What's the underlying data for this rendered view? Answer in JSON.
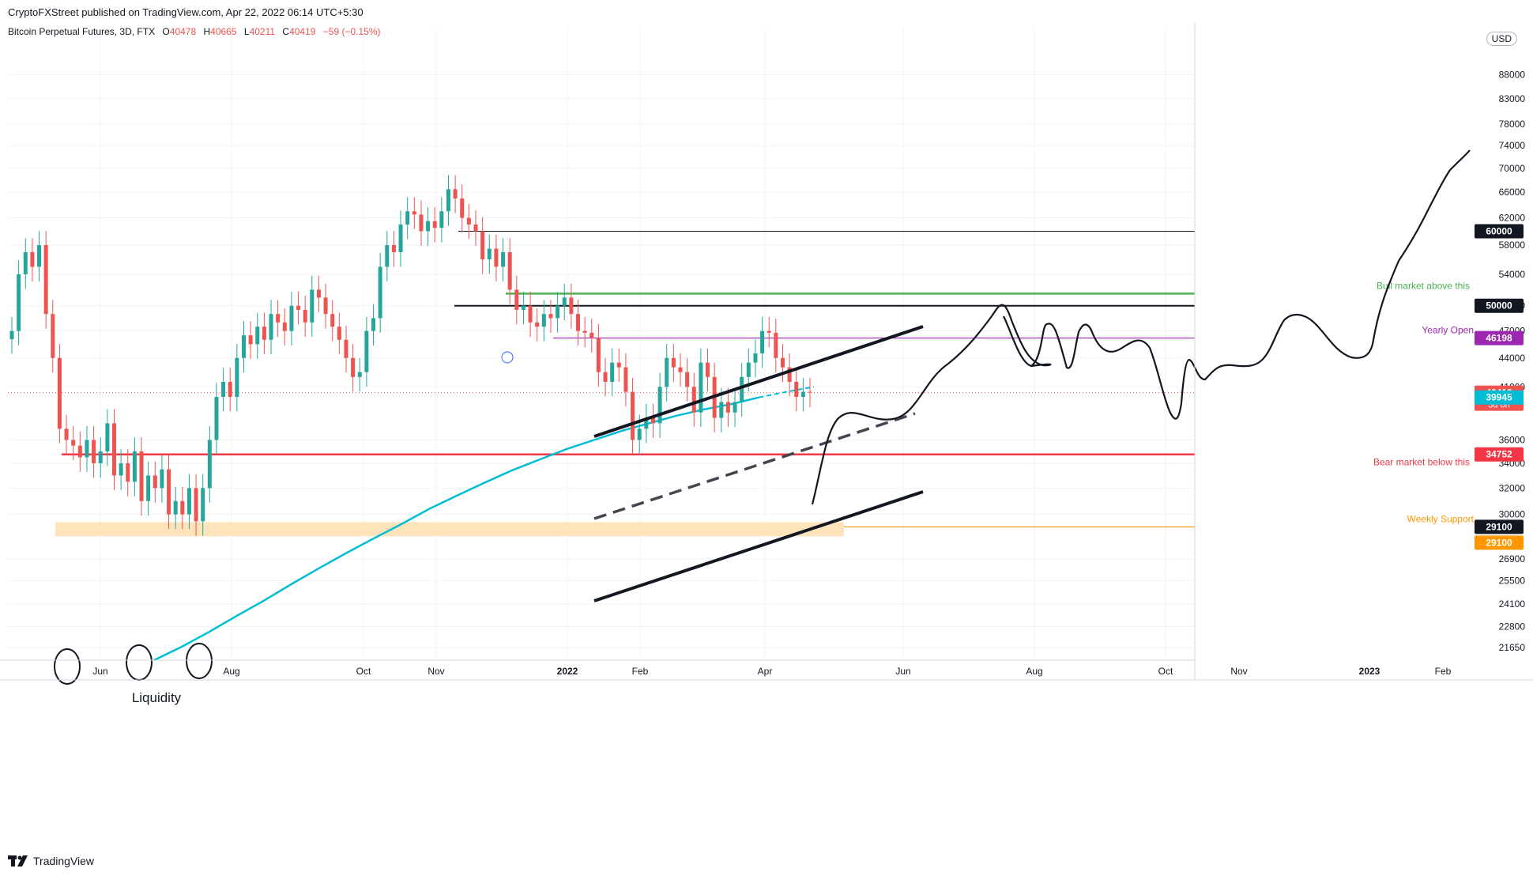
{
  "publisher_line": "CryptoFXStreet published on TradingView.com, Apr 22, 2022 06:14 UTC+5:30",
  "symbol_line": {
    "name": "Bitcoin Perpetual Futures, 3D, FTX",
    "o_label": "O",
    "o": "40478",
    "h_label": "H",
    "h": "40665",
    "l_label": "L",
    "l": "40211",
    "c_label": "C",
    "c": "40419",
    "change": "−59 (−0.15%)"
  },
  "currency_button": "USD",
  "footer_brand": "TradingView",
  "colors": {
    "bull": "#26a69a",
    "bear": "#ef5350",
    "ma": "#00bcd4",
    "green_level": "#4caf50",
    "red_level": "#f23645",
    "purple_level": "#9c27b0",
    "orange_level": "#ff9800",
    "support_zone": "#ffe0b2"
  },
  "chart_data": {
    "type": "candlestick",
    "y_scale": "log",
    "ylim": [
      21000,
      95000
    ],
    "x_labels": [
      "Jun",
      "Aug",
      "Oct",
      "Nov",
      "2022",
      "Feb",
      "Apr",
      "Jun",
      "Aug",
      "Oct",
      "Nov",
      "2023",
      "Feb"
    ],
    "y_ticks": [
      "88000",
      "83000",
      "78000",
      "74000",
      "70000",
      "66000",
      "62000",
      "58000",
      "54000",
      "50000",
      "47000",
      "44000",
      "41000",
      "36000",
      "34000",
      "32000",
      "30000",
      "26900",
      "25500",
      "24100",
      "22800",
      "21650"
    ],
    "price_badges": [
      {
        "label": "60000",
        "value": 60000,
        "color": "#131722"
      },
      {
        "label": "50000",
        "value": 50000,
        "color": "#131722"
      },
      {
        "label": "46198",
        "value": 46198,
        "color": "#9c27b0"
      },
      {
        "label": "40419",
        "value": 40419,
        "color": "#ef5350",
        "sub": "3d 0h"
      },
      {
        "label": "39945",
        "value": 39945,
        "color": "#00bcd4"
      },
      {
        "label": "34752",
        "value": 34752,
        "color": "#f23645"
      },
      {
        "label": "29100",
        "value": 29100,
        "color": "#131722"
      },
      {
        "label": "29100",
        "value": 29100,
        "color": "#ff9800"
      }
    ],
    "horizontal_levels": [
      {
        "value": 60000,
        "label": ""
      },
      {
        "value": 51500,
        "label": "Bull market above this"
      },
      {
        "value": 50000,
        "label": ""
      },
      {
        "value": 46198,
        "label": "Yearly Open"
      },
      {
        "value": 34752,
        "label": "Bear market below this"
      },
      {
        "value": 29100,
        "label": "Weekly Support"
      }
    ],
    "annotations": [
      "Liquidity"
    ],
    "candles_close_path": [
      47000,
      54000,
      57000,
      55000,
      58000,
      49000,
      44000,
      37000,
      36000,
      35500,
      34500,
      36000,
      34000,
      35000,
      37500,
      33000,
      34000,
      32500,
      35000,
      31000,
      33000,
      32000,
      33500,
      30000,
      31000,
      30000,
      32000,
      29500,
      32000,
      36000,
      40000,
      41500,
      40000,
      44000,
      46500,
      45500,
      47500,
      46000,
      49000,
      48000,
      47000,
      50000,
      49500,
      48000,
      52000,
      51000,
      49000,
      47500,
      46000,
      44000,
      42000,
      42500,
      47000,
      48500,
      55000,
      58000,
      57000,
      61000,
      63000,
      62500,
      60000,
      61500,
      60500,
      63000,
      66500,
      65000,
      62000,
      61000,
      60000,
      56000,
      57500,
      55000,
      57000,
      52000,
      49500,
      50000,
      48000,
      47500,
      49000,
      48500,
      50000,
      51000,
      49000,
      47000,
      46800,
      46200,
      42500,
      41500,
      43500,
      43000,
      40500,
      36000,
      37000,
      38000,
      37500,
      41000,
      44000,
      43000,
      42500,
      41000,
      38500,
      43500,
      42000,
      38000,
      39500,
      38500,
      39500,
      42000,
      43500,
      44500,
      47000,
      46800,
      44000,
      43000,
      41500,
      40000,
      40500,
      40419
    ],
    "ma_path": [
      21000,
      21700,
      22500,
      23400,
      24300,
      25300,
      26300,
      27300,
      28300,
      29300,
      30400,
      31400,
      32400,
      33400,
      34300,
      35200,
      36000,
      36800,
      37500,
      38200,
      38800,
      39300,
      39945,
      40500,
      41000
    ]
  }
}
